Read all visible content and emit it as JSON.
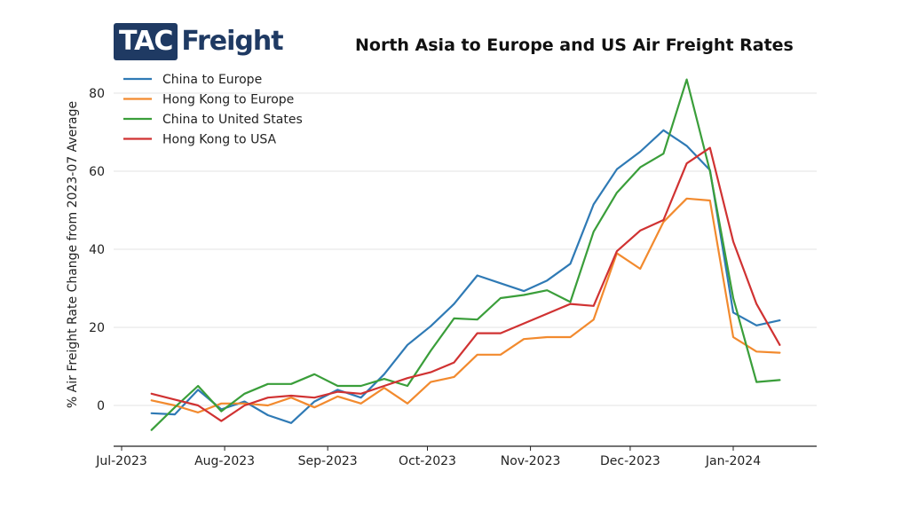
{
  "logo": {
    "part1": "TAC",
    "part2": "Freight"
  },
  "chart_data": {
    "type": "line",
    "title": "North Asia to Europe and US Air Freight Rates",
    "xlabel": "",
    "ylabel": "% Air Freight Rate Change from 2023-07 Average",
    "ylim": [
      -10,
      85
    ],
    "yticks": [
      0,
      20,
      40,
      60,
      80
    ],
    "grid": "horizontal",
    "legend_position": "top-left",
    "x_tick_labels": [
      "Jul-2023",
      "Aug-2023",
      "Sep-2023",
      "Oct-2023",
      "Nov-2023",
      "Dec-2023",
      "Jan-2024"
    ],
    "x": [
      "2023-07-10",
      "2023-07-17",
      "2023-07-24",
      "2023-07-31",
      "2023-08-07",
      "2023-08-14",
      "2023-08-21",
      "2023-08-28",
      "2023-09-04",
      "2023-09-11",
      "2023-09-18",
      "2023-09-25",
      "2023-10-02",
      "2023-10-09",
      "2023-10-16",
      "2023-10-23",
      "2023-10-30",
      "2023-11-06",
      "2023-11-13",
      "2023-11-20",
      "2023-11-27",
      "2023-12-04",
      "2023-12-11",
      "2023-12-18",
      "2023-12-25",
      "2024-01-01",
      "2024-01-08",
      "2024-01-15"
    ],
    "series": [
      {
        "name": "China to Europe",
        "color": "#2f7ab5",
        "values": [
          -2,
          -2.3,
          4,
          -1,
          1,
          -2.5,
          -4.5,
          1,
          4,
          2,
          8,
          15.5,
          20.3,
          26,
          33.3,
          31.3,
          29.3,
          32,
          36.3,
          51.5,
          60.5,
          65,
          70.5,
          66.5,
          60.3,
          23.8,
          20.5,
          21.8
        ]
      },
      {
        "name": "Hong Kong to Europe",
        "color": "#f28a2e",
        "values": [
          1.3,
          0,
          -1.8,
          0.5,
          0.5,
          0,
          2,
          -0.5,
          2.3,
          0.5,
          4.5,
          0.5,
          6,
          7.3,
          13,
          13,
          17,
          17.5,
          17.5,
          22,
          39,
          35,
          47,
          53,
          52.5,
          17.5,
          13.8,
          13.5
        ]
      },
      {
        "name": "China to United States",
        "color": "#3a9e3a",
        "values": [
          -6.3,
          -0.5,
          5,
          -1.5,
          3,
          5.5,
          5.5,
          8,
          5,
          5,
          6.8,
          5,
          14,
          22.3,
          22,
          27.5,
          28.3,
          29.5,
          26.5,
          44.5,
          54.5,
          61,
          64.5,
          83.5,
          60,
          27.5,
          6,
          6.5
        ]
      },
      {
        "name": "Hong Kong to USA",
        "color": "#d03232",
        "values": [
          3,
          1.5,
          0,
          -4,
          0,
          2,
          2.5,
          2,
          3.5,
          3,
          5,
          7,
          8.5,
          11,
          18.5,
          18.5,
          21,
          23.5,
          26,
          25.5,
          39.5,
          44.8,
          47.5,
          62,
          66,
          42,
          26,
          15.5
        ]
      }
    ]
  }
}
